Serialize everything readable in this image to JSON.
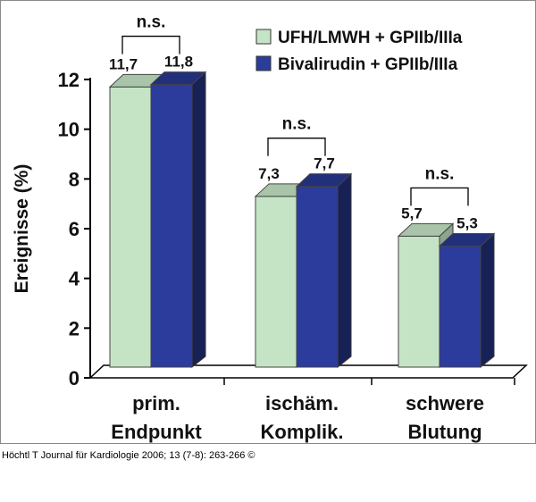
{
  "chart_data": {
    "type": "bar",
    "ylabel": "Ereignisse (%)",
    "ylim": [
      0,
      12
    ],
    "yticks": [
      "0",
      "2",
      "4",
      "6",
      "8",
      "10",
      "12"
    ],
    "grid": false,
    "legend_position": "top-right",
    "categories": [
      {
        "line1": "prim.",
        "line2": "Endpunkt"
      },
      {
        "line1": "ischäm.",
        "line2": "Komplik."
      },
      {
        "line1": "schwere",
        "line2": "Blutung"
      }
    ],
    "series": [
      {
        "name": "UFH/LMWH + GPIIb/IIIa",
        "values": [
          11.7,
          7.3,
          5.7
        ],
        "labels": [
          "11,7",
          "7,3",
          "5,7"
        ],
        "color": "#c5e4c5"
      },
      {
        "name": "Bivalirudin + GPIIb/IIIa",
        "values": [
          11.8,
          7.7,
          5.3
        ],
        "labels": [
          "11,8",
          "7,7",
          "5,3"
        ],
        "color": "#2b3c9c"
      }
    ],
    "significance": [
      "n.s.",
      "n.s.",
      "n.s."
    ]
  },
  "caption": "Höchtl T Journal für Kardiologie 2006; 13 (7-8): 263-266 ©"
}
